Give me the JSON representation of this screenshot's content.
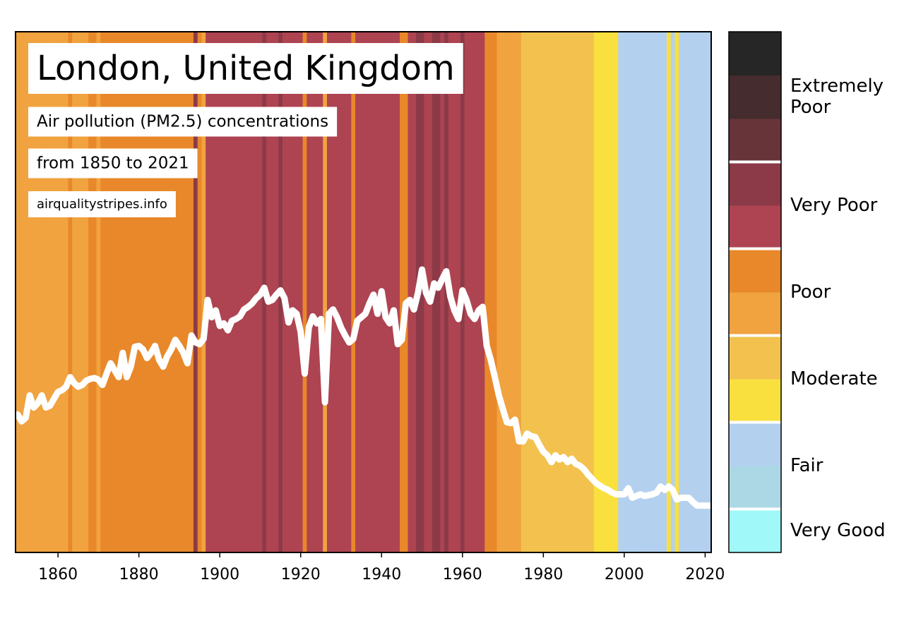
{
  "chart_data": {
    "type": "stripes",
    "title": "London, United Kingdom",
    "subtitle": [
      "Air pollution (PM2.5) concentrations",
      "from 1850 to 2021"
    ],
    "source": "airqualitystripes.info",
    "x": [
      1850,
      1851,
      1852,
      1853,
      1854,
      1855,
      1856,
      1857,
      1858,
      1859,
      1860,
      1861,
      1862,
      1863,
      1864,
      1865,
      1866,
      1867,
      1868,
      1869,
      1870,
      1871,
      1872,
      1873,
      1874,
      1875,
      1876,
      1877,
      1878,
      1879,
      1880,
      1881,
      1882,
      1883,
      1884,
      1885,
      1886,
      1887,
      1888,
      1889,
      1890,
      1891,
      1892,
      1893,
      1894,
      1895,
      1896,
      1897,
      1898,
      1899,
      1900,
      1901,
      1902,
      1903,
      1904,
      1905,
      1906,
      1907,
      1908,
      1909,
      1910,
      1911,
      1912,
      1913,
      1914,
      1915,
      1916,
      1917,
      1918,
      1919,
      1920,
      1921,
      1922,
      1923,
      1924,
      1925,
      1926,
      1927,
      1928,
      1929,
      1930,
      1931,
      1932,
      1933,
      1934,
      1935,
      1936,
      1937,
      1938,
      1939,
      1940,
      1941,
      1942,
      1943,
      1944,
      1945,
      1946,
      1947,
      1948,
      1949,
      1950,
      1951,
      1952,
      1953,
      1954,
      1955,
      1956,
      1957,
      1958,
      1959,
      1960,
      1961,
      1962,
      1963,
      1964,
      1965,
      1966,
      1967,
      1968,
      1969,
      1970,
      1971,
      1972,
      1973,
      1974,
      1975,
      1976,
      1977,
      1978,
      1979,
      1980,
      1981,
      1982,
      1983,
      1984,
      1985,
      1986,
      1987,
      1988,
      1989,
      1990,
      1991,
      1992,
      1993,
      1994,
      1995,
      1996,
      1997,
      1998,
      1999,
      2000,
      2001,
      2002,
      2003,
      2004,
      2005,
      2006,
      2007,
      2008,
      2009,
      2010,
      2011,
      2012,
      2013,
      2014,
      2015,
      2016,
      2017,
      2018,
      2019,
      2020,
      2021
    ],
    "values": [
      15.9,
      15.1,
      15.5,
      18.1,
      16.7,
      17.2,
      18.1,
      16.7,
      16.9,
      17.7,
      18.5,
      18.7,
      19.1,
      20.2,
      19.5,
      19.1,
      19.3,
      19.8,
      20.0,
      20.1,
      19.9,
      19.3,
      20.6,
      21.8,
      21.0,
      20.2,
      23.0,
      20.2,
      21.4,
      23.7,
      23.8,
      23.4,
      22.4,
      23.0,
      23.8,
      22.2,
      21.4,
      22.6,
      23.4,
      24.5,
      23.8,
      23.0,
      21.8,
      25.0,
      24.2,
      24.0,
      24.6,
      29.1,
      27.1,
      27.9,
      26.1,
      26.4,
      25.6,
      26.7,
      26.9,
      27.2,
      28.0,
      28.3,
      28.7,
      29.3,
      29.7,
      30.5,
      28.9,
      29.1,
      29.7,
      30.2,
      29.3,
      26.5,
      27.9,
      27.5,
      25.4,
      20.6,
      25.9,
      27.2,
      26.4,
      26.9,
      17.3,
      27.5,
      28.0,
      27.1,
      25.9,
      25.0,
      24.2,
      24.6,
      26.7,
      27.1,
      27.5,
      28.7,
      29.7,
      27.5,
      30.1,
      27.1,
      26.4,
      27.9,
      24.0,
      24.5,
      28.7,
      29.1,
      28.0,
      29.9,
      32.6,
      29.9,
      28.9,
      31.0,
      30.5,
      31.5,
      32.4,
      29.5,
      27.9,
      26.9,
      30.2,
      29.1,
      27.5,
      26.9,
      27.9,
      28.3,
      23.8,
      22.2,
      20.2,
      18.1,
      16.5,
      15.0,
      14.9,
      15.3,
      12.8,
      12.8,
      13.7,
      13.4,
      13.3,
      12.4,
      11.6,
      11.2,
      10.4,
      11.2,
      10.7,
      11.0,
      10.4,
      10.8,
      10.2,
      10.0,
      9.6,
      9.0,
      8.5,
      8.0,
      7.7,
      7.4,
      7.2,
      6.9,
      6.7,
      6.7,
      6.7,
      7.4,
      6.3,
      6.5,
      6.7,
      6.5,
      6.6,
      6.7,
      6.9,
      7.6,
      7.2,
      7.6,
      7.2,
      6.1,
      6.3,
      6.3,
      6.3,
      5.8,
      5.4,
      5.4,
      5.4,
      5.4
    ],
    "stripe_colors": [
      "#f0a33f",
      "#f0a33f",
      "#f0a33f",
      "#f0a33f",
      "#f0a33f",
      "#f0a33f",
      "#f0a33f",
      "#f0a33f",
      "#f0a33f",
      "#f0a33f",
      "#f0a33f",
      "#f0a33f",
      "#f0a33f",
      "#e8882a",
      "#f0a33f",
      "#f0a33f",
      "#f0a33f",
      "#f0a33f",
      "#e8882a",
      "#e8882a",
      "#f0a33f",
      "#e8882a",
      "#e8882a",
      "#e8882a",
      "#e8882a",
      "#e8882a",
      "#e8882a",
      "#e8882a",
      "#e8882a",
      "#e8882a",
      "#e8882a",
      "#e8882a",
      "#e8882a",
      "#e8882a",
      "#e8882a",
      "#e8882a",
      "#e8882a",
      "#e8882a",
      "#e8882a",
      "#e8882a",
      "#e8882a",
      "#e8882a",
      "#e8882a",
      "#e8882a",
      "#8c3a48",
      "#e8882a",
      "#f0a33f",
      "#ae4451",
      "#ae4451",
      "#ae4451",
      "#ae4451",
      "#ae4451",
      "#ae4451",
      "#ae4451",
      "#ae4451",
      "#ae4451",
      "#ae4451",
      "#ae4451",
      "#ae4451",
      "#ae4451",
      "#ae4451",
      "#8c3a48",
      "#ae4451",
      "#ae4451",
      "#ae4451",
      "#8c3a48",
      "#ae4451",
      "#ae4451",
      "#ae4451",
      "#ae4451",
      "#ae4451",
      "#e8882a",
      "#ae4451",
      "#ae4451",
      "#ae4451",
      "#ae4451",
      "#f0a33f",
      "#ae4451",
      "#ae4451",
      "#ae4451",
      "#ae4451",
      "#ae4451",
      "#ae4451",
      "#e8882a",
      "#ae4451",
      "#ae4451",
      "#ae4451",
      "#ae4451",
      "#ae4451",
      "#ae4451",
      "#ae4451",
      "#ae4451",
      "#ae4451",
      "#ae4451",
      "#ae4451",
      "#e8882a",
      "#e8882a",
      "#ae4451",
      "#ae4451",
      "#8c3a48",
      "#8c3a48",
      "#ae4451",
      "#ae4451",
      "#8c3a48",
      "#8c3a48",
      "#ae4451",
      "#8c3a48",
      "#ae4451",
      "#ae4451",
      "#ae4451",
      "#8c3a48",
      "#ae4451",
      "#ae4451",
      "#ae4451",
      "#ae4451",
      "#ae4451",
      "#e8882a",
      "#e8882a",
      "#e8882a",
      "#f0a33f",
      "#f0a33f",
      "#f0a33f",
      "#f0a33f",
      "#f0a33f",
      "#f0a33f",
      "#f2c14e",
      "#f2c14e",
      "#f2c14e",
      "#f2c14e",
      "#f2c14e",
      "#f2c14e",
      "#f2c14e",
      "#f2c14e",
      "#f2c14e",
      "#f2c14e",
      "#f2c14e",
      "#f2c14e",
      "#f2c14e",
      "#f2c14e",
      "#f2c14e",
      "#f2c14e",
      "#f2c14e",
      "#f2c14e",
      "#f9e03f",
      "#f9e03f",
      "#f9e03f",
      "#f9e03f",
      "#f9e03f",
      "#f9e03f",
      "#b3d0ef",
      "#b3d0ef",
      "#b3d0ef",
      "#b3d0ef",
      "#b3d0ef",
      "#b3d0ef",
      "#b3d0ef",
      "#b3d0ef",
      "#b3d0ef",
      "#b3d0ef",
      "#b3d0ef",
      "#b3d0ef",
      "#f9e03f",
      "#b3d0ef",
      "#f9e03f",
      "#b3d0ef",
      "#b3d0ef",
      "#b3d0ef",
      "#b3d0ef",
      "#b3d0ef",
      "#b3d0ef",
      "#b3d0ef",
      "#b3d0ef"
    ],
    "line_color": "#ffffff",
    "xlim": [
      1849.5,
      2021.5
    ],
    "ylim": [
      0,
      60
    ],
    "xticks": [
      1860,
      1880,
      1900,
      1920,
      1940,
      1960,
      1980,
      2000,
      2020
    ],
    "legend": [
      {
        "label": "Very Good",
        "colors": [
          "#a0f8f8"
        ]
      },
      {
        "label": "Fair",
        "colors": [
          "#acd8e6",
          "#b3d0ef"
        ]
      },
      {
        "label": "Moderate",
        "colors": [
          "#f9e03f",
          "#f2c14e"
        ]
      },
      {
        "label": "Poor",
        "colors": [
          "#f0a33f",
          "#e8882a"
        ]
      },
      {
        "label": "Very Poor",
        "colors": [
          "#ae4451",
          "#8c3a48"
        ]
      },
      {
        "label": "Extremely Poor",
        "colors": [
          "#673539",
          "#452c2e",
          "#262626"
        ]
      }
    ]
  }
}
